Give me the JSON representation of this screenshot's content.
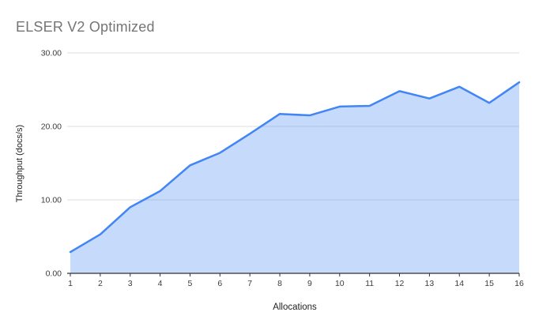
{
  "page": {
    "background": "#ffffff"
  },
  "chart_data": {
    "type": "area",
    "title": "ELSER V2 Optimized",
    "xlabel": "Allocations",
    "ylabel": "Throughput (docs/s)",
    "x": [
      1,
      2,
      3,
      4,
      5,
      6,
      7,
      8,
      9,
      10,
      11,
      12,
      13,
      14,
      15,
      16
    ],
    "series": [
      {
        "name": "ELSER V2 Optimized",
        "values": [
          2.9,
          5.3,
          9.0,
          11.2,
          14.7,
          16.4,
          19.0,
          21.7,
          21.5,
          22.7,
          22.8,
          24.8,
          23.8,
          25.4,
          23.2,
          26.0
        ]
      }
    ],
    "ylim": [
      0,
      30
    ],
    "yticks": [
      0,
      10,
      20,
      30
    ],
    "ytick_labels": [
      "0.00",
      "10.00",
      "20.00",
      "30.00"
    ],
    "xtick_labels": [
      "1",
      "2",
      "3",
      "4",
      "5",
      "6",
      "7",
      "8",
      "9",
      "10",
      "11",
      "12",
      "13",
      "14",
      "15",
      "16"
    ],
    "grid": true,
    "legend_position": "none",
    "colors": {
      "line": "#4285f4",
      "fill": "#4285f4",
      "fill_opacity": "0.30",
      "gridline": "#dcdcdc",
      "axis_line": "#333333",
      "tick_text": "#3c3c3c",
      "title_text": "#757575",
      "axis_title_text": "#222222"
    }
  }
}
